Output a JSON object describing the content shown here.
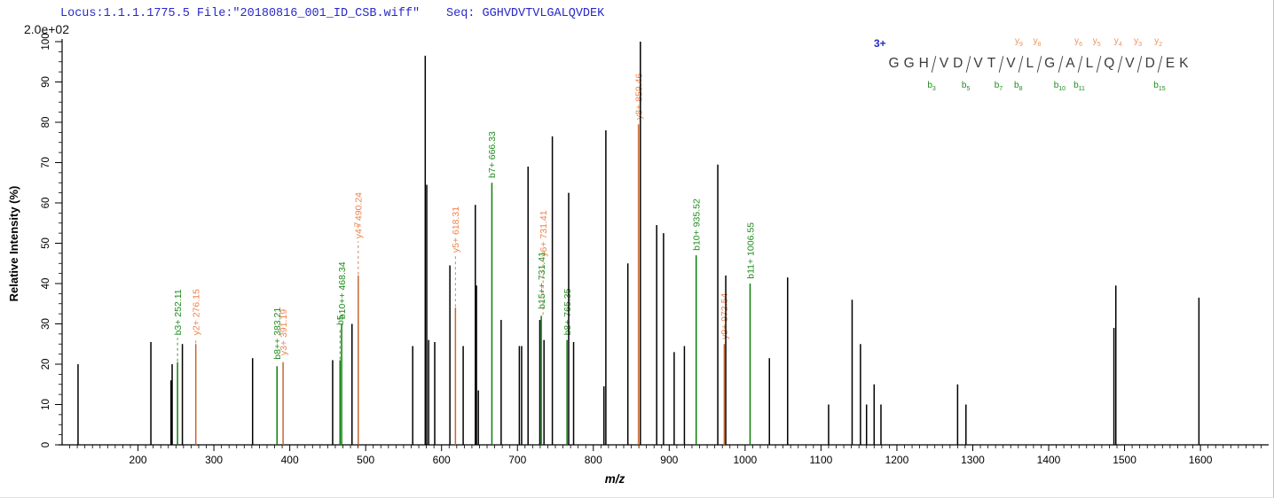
{
  "header": {
    "locus_file": "Locus:1.1.1.1775.5 File:\"20180816_001_ID_CSB.wiff\"",
    "seq_label": "Seq:",
    "sequence": "GGHVDVTVLGALQVDEK",
    "scale_label": "2.0e+02"
  },
  "sequence_panel": {
    "charge": "3+",
    "residues": [
      "G",
      "G",
      "H",
      "V",
      "D",
      "V",
      "T",
      "V",
      "L",
      "G",
      "A",
      "L",
      "Q",
      "V",
      "D",
      "E",
      "K"
    ],
    "cuts": [
      {
        "after": 3,
        "b": "b3",
        "y": ""
      },
      {
        "after": 5,
        "b": "b5",
        "y": ""
      },
      {
        "after": 7,
        "b": "b7",
        "y": ""
      },
      {
        "after": 8,
        "b": "b8",
        "y": "y9"
      },
      {
        "after": 9,
        "b": "",
        "y": "y8"
      },
      {
        "after": 10,
        "b": "b10",
        "y": ""
      },
      {
        "after": 11,
        "b": "b11",
        "y": "y6"
      },
      {
        "after": 12,
        "b": "",
        "y": "y5"
      },
      {
        "after": 13,
        "b": "",
        "y": "y4"
      },
      {
        "after": 14,
        "b": "",
        "y": "y3"
      },
      {
        "after": 15,
        "b": "b15",
        "y": "y2"
      }
    ]
  },
  "colors": {
    "header_blue": "#2929c8",
    "b_ion_label": "#1f8c1f",
    "b_ion_line": "#0c800c",
    "y_ion_label": "#ee834e",
    "y_ion_line": "#c8662e",
    "peak_black": "#000000",
    "axis": "#000000"
  },
  "chart_data": {
    "type": "bar",
    "title": "",
    "xlabel": "m/z",
    "ylabel": "Relative  Intensity (%)",
    "xlim": [
      100,
      1690
    ],
    "ylim": [
      0,
      100
    ],
    "x_major_ticks": [
      200,
      300,
      400,
      500,
      600,
      700,
      800,
      900,
      1000,
      1100,
      1200,
      1300,
      1400,
      1500,
      1600
    ],
    "x_minor_step": 10,
    "y_major_ticks": [
      0,
      10,
      20,
      30,
      40,
      50,
      60,
      70,
      80,
      90,
      100
    ],
    "y_minor_step": 2.5,
    "grid": false,
    "legend": "none",
    "absolute_scale_max": "2.0e+02",
    "stray_label": {
      "text": "7",
      "mz": 493.5,
      "intensity": 54,
      "type": "y"
    },
    "peaks": [
      {
        "mz": 121,
        "intensity": 20,
        "type": "n"
      },
      {
        "mz": 217,
        "intensity": 25.5,
        "type": "n"
      },
      {
        "mz": 243.5,
        "intensity": 16,
        "type": "n"
      },
      {
        "mz": 245,
        "intensity": 20,
        "type": "n"
      },
      {
        "mz": 252.11,
        "intensity": 20.5,
        "type": "b",
        "label": "b3+ 252.11",
        "leader": 6
      },
      {
        "mz": 258.5,
        "intensity": 25,
        "type": "n"
      },
      {
        "mz": 276.15,
        "intensity": 25,
        "type": "y",
        "label": "y2+ 276.15",
        "leader": 1.5
      },
      {
        "mz": 351,
        "intensity": 21.5,
        "type": "n"
      },
      {
        "mz": 383.21,
        "intensity": 19.5,
        "type": "b",
        "label": "b8++ 383.21",
        "leader": 1
      },
      {
        "mz": 391.19,
        "intensity": 20.5,
        "type": "y",
        "label": "y3+ 391.19",
        "leader": 1
      },
      {
        "mz": 456.5,
        "intensity": 21,
        "type": "n"
      },
      {
        "mz": 466.21,
        "intensity": 21,
        "type": "b",
        "label": "b5",
        "leader": 8
      },
      {
        "mz": 468.34,
        "intensity": 30,
        "type": "b",
        "label": "b10++ 468.34",
        "leader": 0.5
      },
      {
        "mz": 482,
        "intensity": 30,
        "type": "n"
      },
      {
        "mz": 490.24,
        "intensity": 42,
        "type": "y",
        "label": "y4+ 490.24",
        "leader": 8.5
      },
      {
        "mz": 562,
        "intensity": 24.5,
        "type": "n"
      },
      {
        "mz": 578.5,
        "intensity": 96.5,
        "type": "n"
      },
      {
        "mz": 580.5,
        "intensity": 64.5,
        "type": "n"
      },
      {
        "mz": 583,
        "intensity": 26,
        "type": "n"
      },
      {
        "mz": 591,
        "intensity": 25.5,
        "type": "n"
      },
      {
        "mz": 611,
        "intensity": 44.5,
        "type": "n"
      },
      {
        "mz": 618.31,
        "intensity": 34,
        "type": "y",
        "label": "y5+ 618.31",
        "leader": 13
      },
      {
        "mz": 628.5,
        "intensity": 24.5,
        "type": "n"
      },
      {
        "mz": 644.5,
        "intensity": 59.5,
        "type": "n"
      },
      {
        "mz": 646,
        "intensity": 39.5,
        "type": "n"
      },
      {
        "mz": 648.5,
        "intensity": 13.5,
        "type": "n"
      },
      {
        "mz": 666.33,
        "intensity": 65,
        "type": "b",
        "label": "b7+ 666.33",
        "leader": 0.5
      },
      {
        "mz": 678.5,
        "intensity": 31,
        "type": "n"
      },
      {
        "mz": 702.5,
        "intensity": 24.5,
        "type": "n"
      },
      {
        "mz": 705.5,
        "intensity": 24.5,
        "type": "n"
      },
      {
        "mz": 714,
        "intensity": 69,
        "type": "n"
      },
      {
        "mz": 729.5,
        "intensity": 31,
        "type": "n"
      },
      {
        "mz": 731.41,
        "intensity": 32,
        "type": "b",
        "label": "b15++ 731.41",
        "leader": 1,
        "label2": "y6+ 731.41",
        "label2_type": "y",
        "label2_leader": 14
      },
      {
        "mz": 735,
        "intensity": 26,
        "type": "n"
      },
      {
        "mz": 746,
        "intensity": 76.5,
        "type": "n"
      },
      {
        "mz": 765.35,
        "intensity": 26,
        "type": "b",
        "label": "b8+ 765.35",
        "leader": 0.5
      },
      {
        "mz": 767.5,
        "intensity": 62.5,
        "type": "n"
      },
      {
        "mz": 774,
        "intensity": 25.5,
        "type": "n"
      },
      {
        "mz": 814,
        "intensity": 14.5,
        "type": "n"
      },
      {
        "mz": 816.5,
        "intensity": 78,
        "type": "n"
      },
      {
        "mz": 845.5,
        "intensity": 45,
        "type": "n"
      },
      {
        "mz": 859.46,
        "intensity": 79.5,
        "type": "y",
        "label": "y8+ 859.46",
        "leader": 0.5
      },
      {
        "mz": 862,
        "intensity": 100,
        "type": "n"
      },
      {
        "mz": 883.5,
        "intensity": 54.5,
        "type": "n"
      },
      {
        "mz": 892.5,
        "intensity": 52.5,
        "type": "n"
      },
      {
        "mz": 906.5,
        "intensity": 23,
        "type": "n"
      },
      {
        "mz": 920,
        "intensity": 24.5,
        "type": "n"
      },
      {
        "mz": 935.52,
        "intensity": 47,
        "type": "b",
        "label": "b10+ 935.52",
        "leader": 0.5
      },
      {
        "mz": 964,
        "intensity": 69.5,
        "type": "n"
      },
      {
        "mz": 972.54,
        "intensity": 25,
        "type": "y",
        "label": "y9+ 972.54",
        "leader": 0.5
      },
      {
        "mz": 974.5,
        "intensity": 42,
        "type": "n"
      },
      {
        "mz": 1006.55,
        "intensity": 40,
        "type": "b",
        "label": "b11+ 1006.55",
        "leader": 0.5
      },
      {
        "mz": 1032,
        "intensity": 21.5,
        "type": "n"
      },
      {
        "mz": 1056,
        "intensity": 41.5,
        "type": "n"
      },
      {
        "mz": 1110,
        "intensity": 10,
        "type": "n"
      },
      {
        "mz": 1141,
        "intensity": 36,
        "type": "n"
      },
      {
        "mz": 1152,
        "intensity": 25,
        "type": "n"
      },
      {
        "mz": 1160,
        "intensity": 10,
        "type": "n"
      },
      {
        "mz": 1170,
        "intensity": 15,
        "type": "n"
      },
      {
        "mz": 1179,
        "intensity": 10,
        "type": "n"
      },
      {
        "mz": 1280,
        "intensity": 15,
        "type": "n"
      },
      {
        "mz": 1291,
        "intensity": 10,
        "type": "n"
      },
      {
        "mz": 1486,
        "intensity": 29,
        "type": "n"
      },
      {
        "mz": 1488.5,
        "intensity": 39.5,
        "type": "n"
      },
      {
        "mz": 1598,
        "intensity": 36.5,
        "type": "n"
      }
    ]
  }
}
